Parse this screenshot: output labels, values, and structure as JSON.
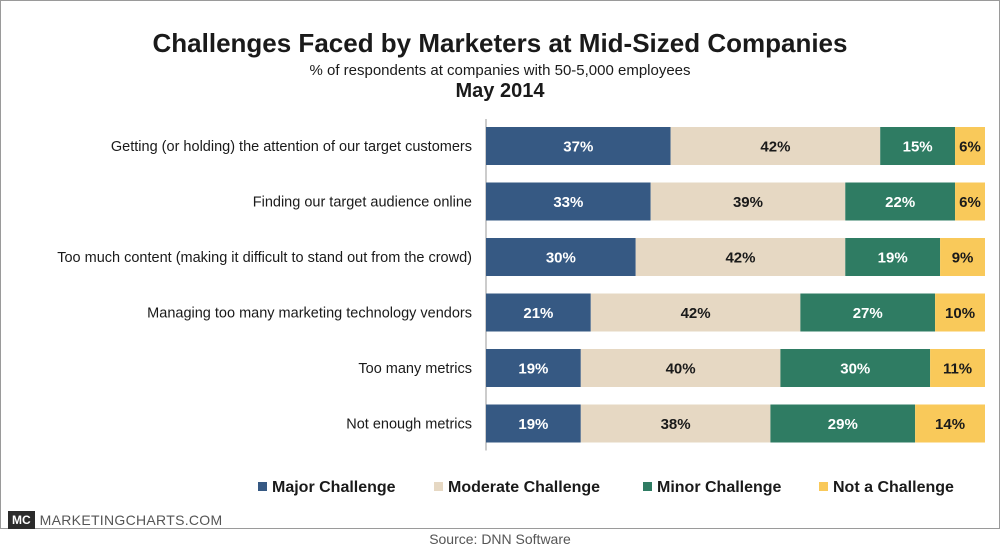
{
  "header": {
    "title": "Challenges Faced by Marketers at Mid-Sized Companies",
    "subtitle": "% of respondents at companies with 50-5,000 employees",
    "date": "May 2014"
  },
  "footer": {
    "brand_logo": "MC",
    "brand_name": "MARKETINGCHARTS.COM",
    "source": "Source: DNN Software"
  },
  "colors": {
    "major": "#365983",
    "moderate": "#e6d8c3",
    "minor": "#2f7c63",
    "none": "#f9c95a"
  },
  "chart_data": {
    "type": "bar",
    "orientation": "horizontal",
    "stacked": true,
    "percent_stacked": true,
    "title": "Challenges Faced by Marketers at Mid-Sized Companies",
    "subtitle": "% of respondents at companies with 50-5,000 employees",
    "xlabel": "",
    "ylabel": "",
    "xlim": [
      0,
      100
    ],
    "legend_position": "bottom",
    "categories": [
      "Getting (or holding) the attention of our target customers",
      "Finding our target audience online",
      "Too much content (making it difficult to stand out from the crowd)",
      "Managing too many marketing technology vendors",
      "Too many metrics",
      "Not enough metrics"
    ],
    "series": [
      {
        "name": "Major Challenge",
        "key": "major",
        "values": [
          37,
          33,
          30,
          21,
          19,
          19
        ],
        "labels": [
          "37%",
          "33%",
          "30%",
          "21%",
          "19%",
          "19%"
        ]
      },
      {
        "name": "Moderate Challenge",
        "key": "moderate",
        "values": [
          42,
          39,
          42,
          42,
          40,
          38
        ],
        "labels": [
          "42%",
          "39%",
          "42%",
          "42%",
          "40%",
          "38%"
        ]
      },
      {
        "name": "Minor Challenge",
        "key": "minor",
        "values": [
          15,
          22,
          19,
          27,
          30,
          29
        ],
        "labels": [
          "15%",
          "22%",
          "19%",
          "27%",
          "30%",
          "29%"
        ]
      },
      {
        "name": "Not a Challenge",
        "key": "none",
        "values": [
          6,
          6,
          9,
          10,
          11,
          14
        ],
        "labels": [
          "6%",
          "6%",
          "9%",
          "10%",
          "11%",
          "14%"
        ]
      }
    ]
  }
}
